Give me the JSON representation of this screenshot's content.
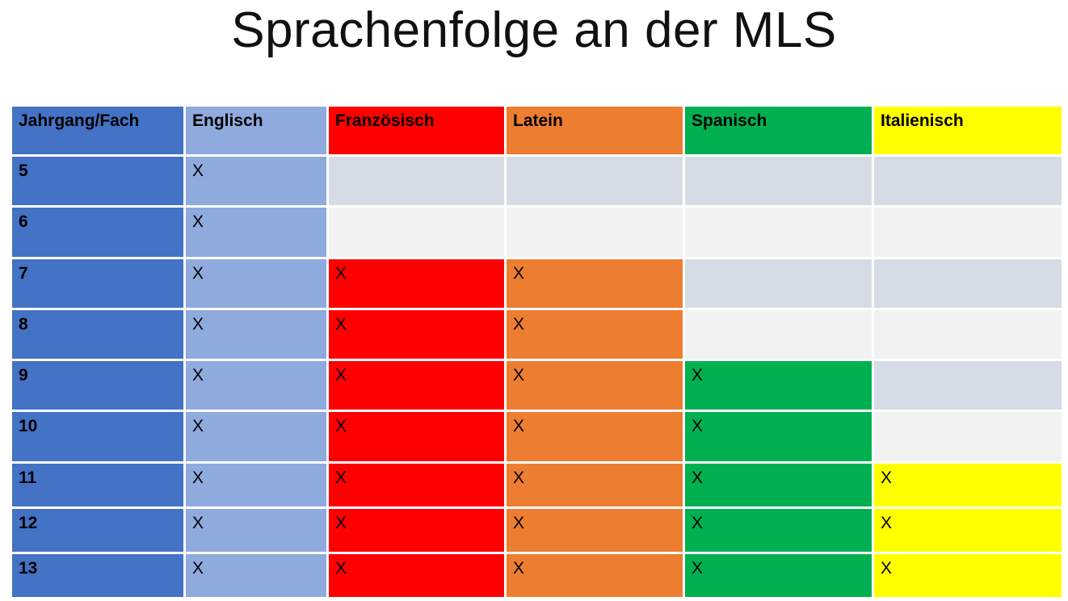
{
  "title": "Sprachenfolge an der MLS",
  "header": {
    "col0": "Jahrgang/Fach",
    "col1": "Englisch",
    "col2": "Französisch",
    "col3": "Latein",
    "col4": "Spanisch",
    "col5": "Italienisch"
  },
  "rows": [
    {
      "jahrgang": "5",
      "englisch": "X",
      "franzoesisch": "",
      "latein": "",
      "spanisch": "",
      "italienisch": ""
    },
    {
      "jahrgang": "6",
      "englisch": "X",
      "franzoesisch": "",
      "latein": "",
      "spanisch": "",
      "italienisch": ""
    },
    {
      "jahrgang": "7",
      "englisch": "X",
      "franzoesisch": "X",
      "latein": "X",
      "spanisch": "",
      "italienisch": ""
    },
    {
      "jahrgang": "8",
      "englisch": "X",
      "franzoesisch": "X",
      "latein": "X",
      "spanisch": "",
      "italienisch": ""
    },
    {
      "jahrgang": "9",
      "englisch": "X",
      "franzoesisch": "X",
      "latein": "X",
      "spanisch": "X",
      "italienisch": ""
    },
    {
      "jahrgang": "10",
      "englisch": "X",
      "franzoesisch": "X",
      "latein": "X",
      "spanisch": "X",
      "italienisch": ""
    },
    {
      "jahrgang": "11",
      "englisch": "X",
      "franzoesisch": "X",
      "latein": "X",
      "spanisch": "X",
      "italienisch": "X"
    },
    {
      "jahrgang": "12",
      "englisch": "X",
      "franzoesisch": "X",
      "latein": "X",
      "spanisch": "X",
      "italienisch": "X"
    },
    {
      "jahrgang": "13",
      "englisch": "X",
      "franzoesisch": "X",
      "latein": "X",
      "spanisch": "X",
      "italienisch": "X"
    }
  ],
  "colors": {
    "jahrgang": "#4472c4",
    "englisch": "#8faadc",
    "franzoesisch": "#ff0000",
    "latein": "#ed7d31",
    "spanisch": "#00b050",
    "italienisch": "#ffff00",
    "empty_band_dark": "#d6dce5",
    "empty_band_light": "#f2f2f2"
  }
}
